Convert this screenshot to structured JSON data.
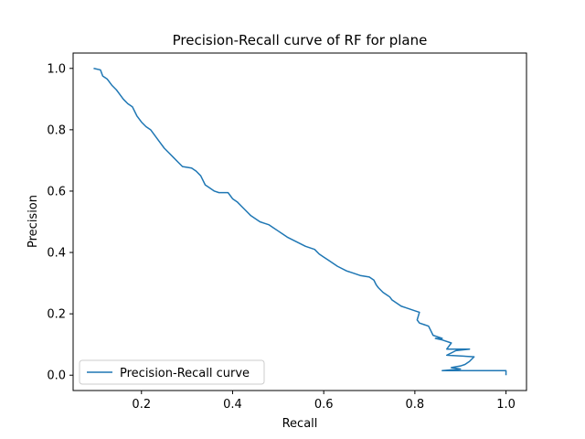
{
  "chart_data": {
    "type": "line",
    "title": "Precision-Recall curve of RF for plane",
    "xlabel": "Recall",
    "ylabel": "Precision",
    "xlim": [
      0.05,
      1.045
    ],
    "ylim": [
      -0.05,
      1.05
    ],
    "xticks": [
      0.2,
      0.4,
      0.6,
      0.8,
      1.0
    ],
    "xtick_labels": [
      "0.2",
      "0.4",
      "0.6",
      "0.8",
      "1.0"
    ],
    "yticks": [
      0.0,
      0.2,
      0.4,
      0.6,
      0.8,
      1.0
    ],
    "ytick_labels": [
      "0.0",
      "0.2",
      "0.4",
      "0.6",
      "0.8",
      "1.0"
    ],
    "grid": false,
    "legend_position": "lower-left",
    "series": [
      {
        "name": "Precision-Recall curve",
        "color": "#1f77b4",
        "x": [
          0.095,
          0.11,
          0.115,
          0.125,
          0.135,
          0.145,
          0.16,
          0.17,
          0.18,
          0.19,
          0.2,
          0.21,
          0.22,
          0.23,
          0.24,
          0.25,
          0.26,
          0.27,
          0.28,
          0.29,
          0.31,
          0.32,
          0.33,
          0.34,
          0.345,
          0.36,
          0.37,
          0.38,
          0.39,
          0.4,
          0.41,
          0.42,
          0.43,
          0.44,
          0.45,
          0.46,
          0.47,
          0.48,
          0.49,
          0.5,
          0.52,
          0.54,
          0.56,
          0.58,
          0.59,
          0.6,
          0.61,
          0.62,
          0.63,
          0.65,
          0.66,
          0.68,
          0.7,
          0.71,
          0.715,
          0.72,
          0.73,
          0.74,
          0.745,
          0.75,
          0.76,
          0.77,
          0.78,
          0.8,
          0.81,
          0.805,
          0.81,
          0.82,
          0.83,
          0.835,
          0.84,
          0.86,
          0.845,
          0.86,
          0.88,
          0.87,
          0.92,
          0.89,
          0.87,
          0.93,
          0.92,
          0.91,
          0.9,
          0.88,
          0.9,
          0.86,
          1.0,
          1.0
        ],
        "y": [
          1.0,
          0.995,
          0.975,
          0.965,
          0.945,
          0.93,
          0.9,
          0.885,
          0.875,
          0.845,
          0.825,
          0.81,
          0.8,
          0.78,
          0.76,
          0.74,
          0.725,
          0.71,
          0.695,
          0.68,
          0.675,
          0.665,
          0.65,
          0.62,
          0.615,
          0.6,
          0.595,
          0.595,
          0.595,
          0.575,
          0.565,
          0.55,
          0.535,
          0.52,
          0.51,
          0.5,
          0.495,
          0.49,
          0.48,
          0.47,
          0.45,
          0.435,
          0.42,
          0.41,
          0.395,
          0.385,
          0.375,
          0.365,
          0.355,
          0.34,
          0.335,
          0.325,
          0.32,
          0.31,
          0.295,
          0.285,
          0.27,
          0.26,
          0.255,
          0.245,
          0.235,
          0.225,
          0.22,
          0.21,
          0.205,
          0.18,
          0.17,
          0.165,
          0.16,
          0.145,
          0.13,
          0.12,
          0.12,
          0.115,
          0.105,
          0.085,
          0.085,
          0.08,
          0.065,
          0.06,
          0.045,
          0.035,
          0.03,
          0.025,
          0.02,
          0.015,
          0.015,
          0.0
        ]
      }
    ]
  }
}
